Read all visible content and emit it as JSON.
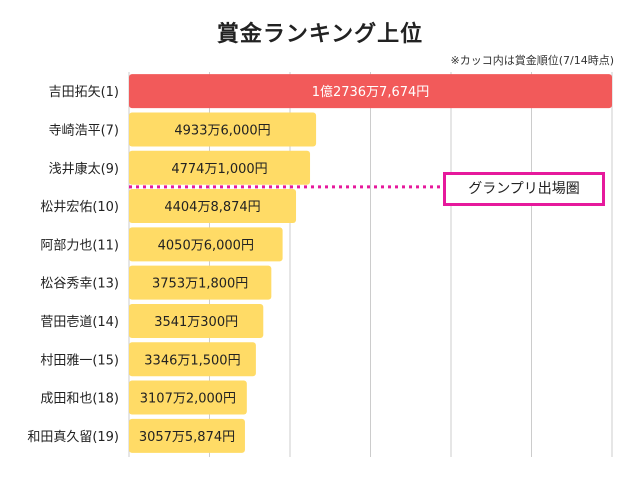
{
  "title": "賞金ランキング上位",
  "note": "※カッコ内は賞金順位(7/14時点)",
  "annotation": {
    "label": "グランプリ出場圏",
    "color": "#e6199c",
    "after_index": 2
  },
  "colors": {
    "first": "#f25a5a",
    "rest": "#ffdb66",
    "grid": "#cccccc"
  },
  "chart_data": {
    "type": "bar",
    "orientation": "horizontal",
    "title": "賞金ランキング上位",
    "categories": [
      "吉田拓矢(1)",
      "寺崎浩平(7)",
      "浅井康太(9)",
      "松井宏佑(10)",
      "阿部力也(11)",
      "松谷秀幸(13)",
      "菅田壱道(14)",
      "村田雅一(15)",
      "成田和也(18)",
      "和田真久留(19)"
    ],
    "values": [
      127367674,
      49336000,
      47741000,
      44048874,
      40506000,
      37531800,
      35410300,
      33461500,
      31072000,
      30575874
    ],
    "value_labels": [
      "1億2736万7,674円",
      "4933万6,000円",
      "4774万1,000円",
      "4404万8,874円",
      "4050万6,000円",
      "3753万1,800円",
      "3541万300円",
      "3346万1,500円",
      "3107万2,000円",
      "3057万5,874円"
    ],
    "xlim": [
      0,
      127367674
    ],
    "grid": true
  }
}
